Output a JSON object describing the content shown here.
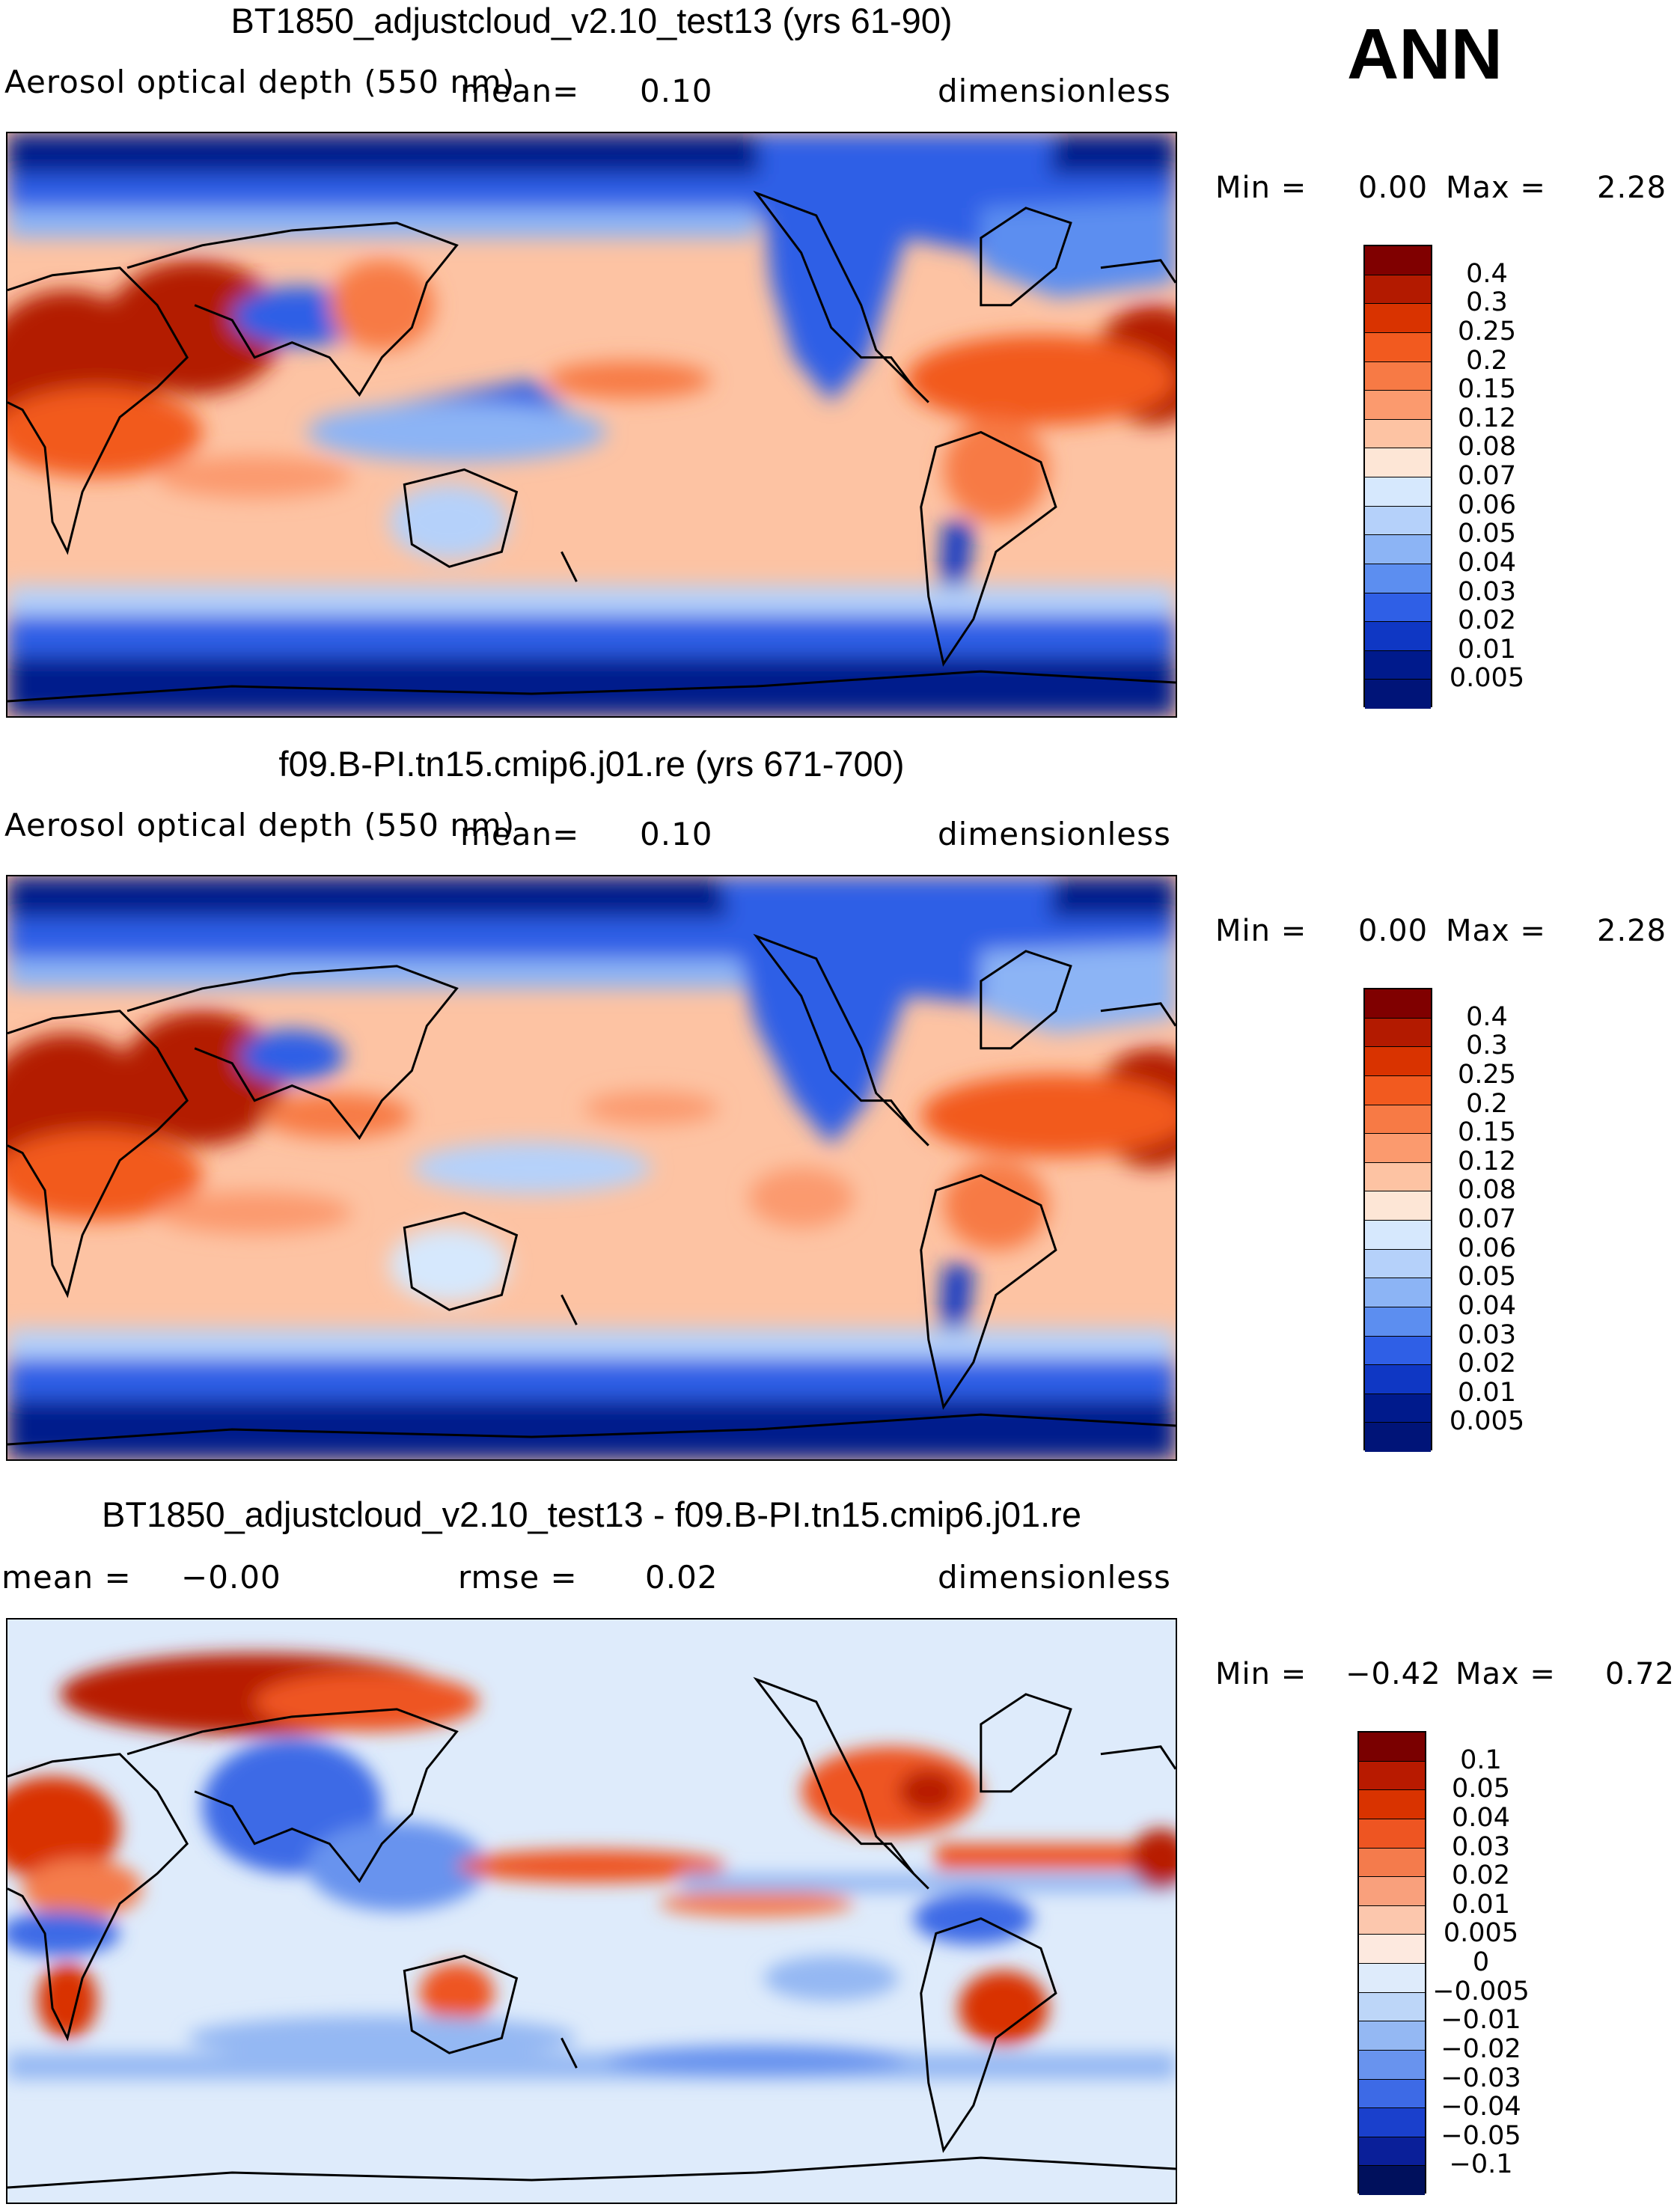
{
  "season": "ANN",
  "panels": [
    {
      "title": "BT1850_adjustcloud_v2.10_test13 (yrs 61-90)",
      "variable": "Aerosol optical depth (550 nm)",
      "mean_label": "mean=",
      "mean_value": "0.10",
      "units": "dimensionless",
      "min_label": "Min =",
      "min_value": "0.00",
      "max_label": "Max =",
      "max_value": "2.28",
      "levels": [
        "0.4",
        "0.3",
        "0.25",
        "0.2",
        "0.15",
        "0.12",
        "0.08",
        "0.07",
        "0.06",
        "0.05",
        "0.04",
        "0.03",
        "0.02",
        "0.01",
        "0.005"
      ],
      "colors": [
        "#800000",
        "#b31a00",
        "#d93300",
        "#f25a1f",
        "#f77a45",
        "#fb9a6e",
        "#fdc3a3",
        "#fde6d6",
        "#d6e8fd",
        "#b5d1fa",
        "#8cb4f5",
        "#5c8ef0",
        "#2f5fe6",
        "#0f37c4",
        "#001a8c"
      ],
      "bottom_color": "#001478"
    },
    {
      "title": "f09.B-PI.tn15.cmip6.j01.re (yrs 671-700)",
      "variable": "Aerosol optical depth (550 nm)",
      "mean_label": "mean=",
      "mean_value": "0.10",
      "units": "dimensionless",
      "min_label": "Min =",
      "min_value": "0.00",
      "max_label": "Max =",
      "max_value": "2.28",
      "levels": [
        "0.4",
        "0.3",
        "0.25",
        "0.2",
        "0.15",
        "0.12",
        "0.08",
        "0.07",
        "0.06",
        "0.05",
        "0.04",
        "0.03",
        "0.02",
        "0.01",
        "0.005"
      ],
      "colors": [
        "#800000",
        "#b31a00",
        "#d93300",
        "#f25a1f",
        "#f77a45",
        "#fb9a6e",
        "#fdc3a3",
        "#fde6d6",
        "#d6e8fd",
        "#b5d1fa",
        "#8cb4f5",
        "#5c8ef0",
        "#2f5fe6",
        "#0f37c4",
        "#001a8c"
      ],
      "bottom_color": "#001478"
    },
    {
      "title": "BT1850_adjustcloud_v2.10_test13 - f09.B-PI.tn15.cmip6.j01.re",
      "mean_label": "mean =",
      "mean_value": "−0.00",
      "rmse_label": "rmse =",
      "rmse_value": "0.02",
      "units": "dimensionless",
      "min_label": "Min =",
      "min_value": "−0.42",
      "max_label": "Max =",
      "max_value": "0.72",
      "levels": [
        "0.1",
        "0.05",
        "0.04",
        "0.03",
        "0.02",
        "0.01",
        "0.005",
        "0",
        "−0.005",
        "−0.01",
        "−0.02",
        "−0.03",
        "−0.04",
        "−0.05",
        "−0.1"
      ],
      "colors": [
        "#7a0000",
        "#b81a00",
        "#d93300",
        "#ee5522",
        "#f47b4c",
        "#f9a07c",
        "#fcc7ad",
        "#fde9df",
        "#deebfb",
        "#bdd6f8",
        "#94b8f3",
        "#6893ee",
        "#3d6ae6",
        "#1a40cc",
        "#0a1f99"
      ],
      "bottom_color": "#00105c"
    }
  ],
  "chart_data": [
    {
      "type": "heatmap",
      "title": "BT1850_adjustcloud_v2.10_test13 (yrs 61-90)",
      "variable": "Aerosol optical depth (550 nm)",
      "units": "dimensionless",
      "mean": 0.1,
      "min": 0.0,
      "max": 2.28,
      "colorbar_levels": [
        0.005,
        0.01,
        0.02,
        0.03,
        0.04,
        0.05,
        0.06,
        0.07,
        0.08,
        0.12,
        0.15,
        0.2,
        0.25,
        0.3,
        0.4
      ],
      "domain": "global map, longitudes 0-360, latitudes -90 to 90"
    },
    {
      "type": "heatmap",
      "title": "f09.B-PI.tn15.cmip6.j01.re (yrs 671-700)",
      "variable": "Aerosol optical depth (550 nm)",
      "units": "dimensionless",
      "mean": 0.1,
      "min": 0.0,
      "max": 2.28,
      "colorbar_levels": [
        0.005,
        0.01,
        0.02,
        0.03,
        0.04,
        0.05,
        0.06,
        0.07,
        0.08,
        0.12,
        0.15,
        0.2,
        0.25,
        0.3,
        0.4
      ],
      "domain": "global map, longitudes 0-360, latitudes -90 to 90"
    },
    {
      "type": "heatmap",
      "title": "BT1850_adjustcloud_v2.10_test13 - f09.B-PI.tn15.cmip6.j01.re",
      "units": "dimensionless",
      "mean": -0.0,
      "rmse": 0.02,
      "min": -0.42,
      "max": 0.72,
      "colorbar_levels": [
        -0.1,
        -0.05,
        -0.04,
        -0.03,
        -0.02,
        -0.01,
        -0.005,
        0,
        0.005,
        0.01,
        0.02,
        0.03,
        0.04,
        0.05,
        0.1
      ],
      "domain": "global map, longitudes 0-360, latitudes -90 to 90"
    }
  ]
}
